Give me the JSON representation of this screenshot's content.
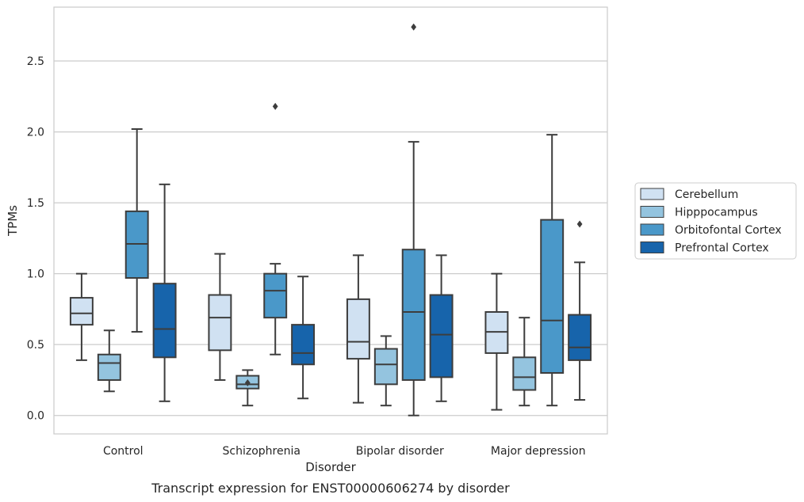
{
  "caption": "Transcript expression for ENST00000606274 by disorder",
  "chart_data": {
    "type": "box",
    "title": "",
    "xlabel": "Disorder",
    "ylabel": "TPMs",
    "ylim": [
      -0.13,
      2.88
    ],
    "yticks": [
      "0.0",
      "0.5",
      "1.0",
      "1.5",
      "2.0",
      "2.5"
    ],
    "grid": "horizontal",
    "legend_position": "right",
    "categories": [
      "Control",
      "Schizophrenia",
      "Bipolar disorder",
      "Major depression"
    ],
    "series": [
      {
        "name": "Cerebellum",
        "color": "#d0e1f2",
        "boxes": [
          {
            "whislo": 0.39,
            "q1": 0.64,
            "med": 0.72,
            "q3": 0.83,
            "whishi": 1.0,
            "fliers": []
          },
          {
            "whislo": 0.25,
            "q1": 0.46,
            "med": 0.69,
            "q3": 0.85,
            "whishi": 1.14,
            "fliers": []
          },
          {
            "whislo": 0.09,
            "q1": 0.4,
            "med": 0.52,
            "q3": 0.82,
            "whishi": 1.13,
            "fliers": []
          },
          {
            "whislo": 0.04,
            "q1": 0.44,
            "med": 0.59,
            "q3": 0.73,
            "whishi": 1.0,
            "fliers": []
          }
        ]
      },
      {
        "name": "Hipppocampus",
        "color": "#94c4df",
        "boxes": [
          {
            "whislo": 0.17,
            "q1": 0.25,
            "med": 0.37,
            "q3": 0.43,
            "whishi": 0.6,
            "fliers": []
          },
          {
            "whislo": 0.07,
            "q1": 0.19,
            "med": 0.22,
            "q3": 0.28,
            "whishi": 0.32,
            "fliers": [
              0.23
            ]
          },
          {
            "whislo": 0.07,
            "q1": 0.22,
            "med": 0.36,
            "q3": 0.47,
            "whishi": 0.56,
            "fliers": []
          },
          {
            "whislo": 0.07,
            "q1": 0.18,
            "med": 0.27,
            "q3": 0.41,
            "whishi": 0.69,
            "fliers": []
          }
        ]
      },
      {
        "name": "Orbitofontal Cortex",
        "color": "#4a98c9",
        "boxes": [
          {
            "whislo": 0.59,
            "q1": 0.97,
            "med": 1.21,
            "q3": 1.44,
            "whishi": 2.02,
            "fliers": []
          },
          {
            "whislo": 0.43,
            "q1": 0.69,
            "med": 0.88,
            "q3": 1.0,
            "whishi": 1.07,
            "fliers": [
              2.18
            ]
          },
          {
            "whislo": 0.0,
            "q1": 0.25,
            "med": 0.73,
            "q3": 1.17,
            "whishi": 1.93,
            "fliers": [
              2.74
            ]
          },
          {
            "whislo": 0.07,
            "q1": 0.3,
            "med": 0.67,
            "q3": 1.38,
            "whishi": 1.98,
            "fliers": []
          }
        ]
      },
      {
        "name": "Prefrontal Cortex",
        "color": "#1764ab",
        "boxes": [
          {
            "whislo": 0.1,
            "q1": 0.41,
            "med": 0.61,
            "q3": 0.93,
            "whishi": 1.63,
            "fliers": []
          },
          {
            "whislo": 0.12,
            "q1": 0.36,
            "med": 0.44,
            "q3": 0.64,
            "whishi": 0.98,
            "fliers": []
          },
          {
            "whislo": 0.1,
            "q1": 0.27,
            "med": 0.57,
            "q3": 0.85,
            "whishi": 1.13,
            "fliers": []
          },
          {
            "whislo": 0.11,
            "q1": 0.39,
            "med": 0.48,
            "q3": 0.71,
            "whishi": 1.08,
            "fliers": [
              1.35
            ]
          }
        ]
      }
    ]
  }
}
